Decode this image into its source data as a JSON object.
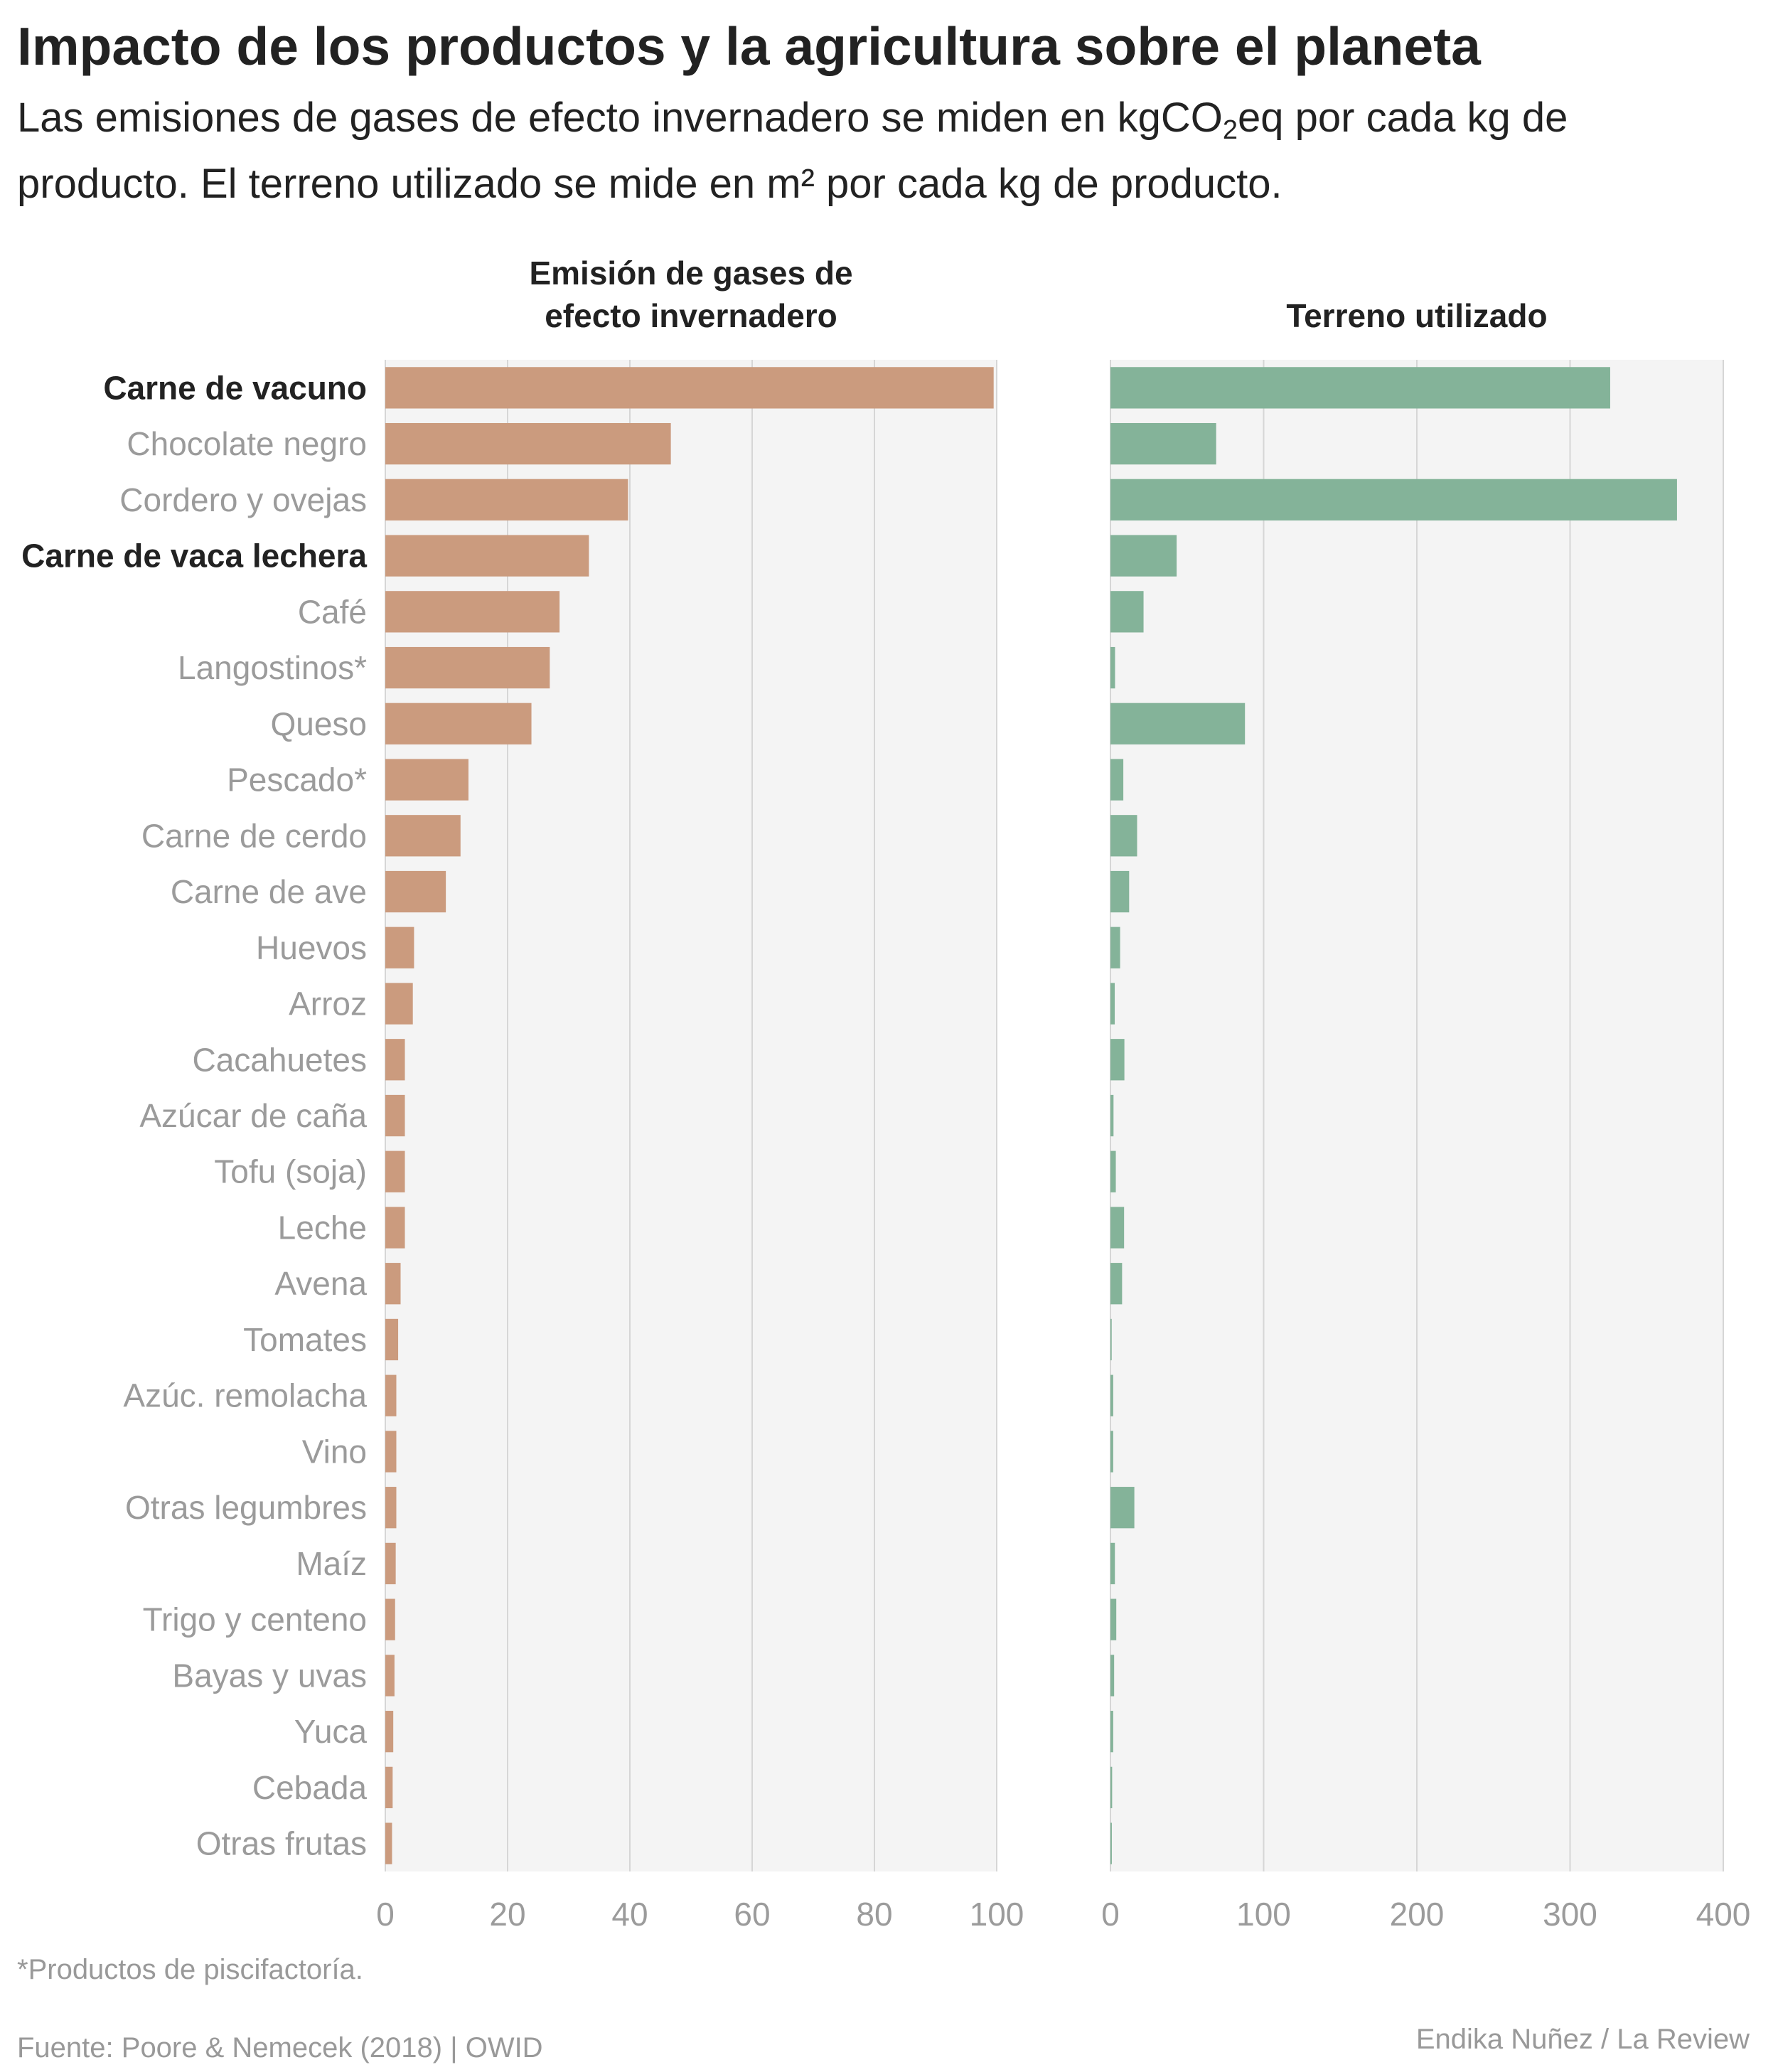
{
  "header": {
    "title": "Impacto de los productos y la agricultura sobre el planeta",
    "subtitle_part1": "Las emisiones de gases de efecto invernadero se miden en kgCO",
    "subtitle_sub": "2",
    "subtitle_part2": "eq por cada kg de producto. El terreno utilizado se mide en m² por cada kg de producto."
  },
  "footer": {
    "note": "*Productos de piscifactoría.",
    "source": "Fuente: Poore & Nemecek (2018) | OWID",
    "credit": "Endika Nuñez / La Review"
  },
  "colors": {
    "emissions_bar": "#cb9b7e",
    "land_bar": "#84b399",
    "plot_background": "#f4f4f4",
    "gridline": "#d6d6d6"
  },
  "chart_data": [
    {
      "type": "bar",
      "orientation": "horizontal",
      "title_lines": [
        "Emisión de gases de",
        "efecto invernadero"
      ],
      "categories": [
        "Carne de vacuno",
        "Chocolate negro",
        "Cordero y ovejas",
        "Carne de vaca lechera",
        "Café",
        "Langostinos*",
        "Queso",
        "Pescado*",
        "Carne de cerdo",
        "Carne de ave",
        "Huevos",
        "Arroz",
        "Cacahuetes",
        "Azúcar de caña",
        "Tofu (soja)",
        "Leche",
        "Avena",
        "Tomates",
        "Azúc. remolacha",
        "Vino",
        "Otras legumbres",
        "Maíz",
        "Trigo y centeno",
        "Bayas y uvas",
        "Yuca",
        "Cebada",
        "Otras frutas"
      ],
      "highlighted": [
        "Carne de vacuno",
        "Carne de vaca lechera"
      ],
      "values": [
        99.5,
        46.7,
        39.7,
        33.3,
        28.5,
        26.9,
        23.9,
        13.6,
        12.3,
        9.9,
        4.7,
        4.5,
        3.2,
        3.2,
        3.2,
        3.2,
        2.5,
        2.1,
        1.8,
        1.8,
        1.8,
        1.7,
        1.6,
        1.5,
        1.3,
        1.2,
        1.1
      ],
      "xlim": [
        0,
        100
      ],
      "ticks": [
        0,
        20,
        40,
        60,
        80,
        100
      ],
      "grid": true
    },
    {
      "type": "bar",
      "orientation": "horizontal",
      "title": "Terreno utilizado",
      "categories": [
        "Carne de vacuno",
        "Chocolate negro",
        "Cordero y ovejas",
        "Carne de vaca lechera",
        "Café",
        "Langostinos*",
        "Queso",
        "Pescado*",
        "Carne de cerdo",
        "Carne de ave",
        "Huevos",
        "Arroz",
        "Cacahuetes",
        "Azúcar de caña",
        "Tofu (soja)",
        "Leche",
        "Avena",
        "Tomates",
        "Azúc. remolacha",
        "Vino",
        "Otras legumbres",
        "Maíz",
        "Trigo y centeno",
        "Bayas y uvas",
        "Yuca",
        "Cebada",
        "Otras frutas"
      ],
      "values": [
        326.2,
        69.0,
        369.8,
        43.2,
        21.6,
        3.0,
        87.8,
        8.4,
        17.4,
        12.2,
        6.3,
        2.8,
        9.1,
        2.0,
        3.5,
        8.9,
        7.6,
        0.8,
        1.8,
        1.8,
        15.6,
        2.9,
        3.8,
        2.4,
        1.8,
        1.1,
        0.9
      ],
      "xlim": [
        0,
        400
      ],
      "ticks": [
        0,
        100,
        200,
        300,
        400
      ],
      "grid": true
    }
  ]
}
